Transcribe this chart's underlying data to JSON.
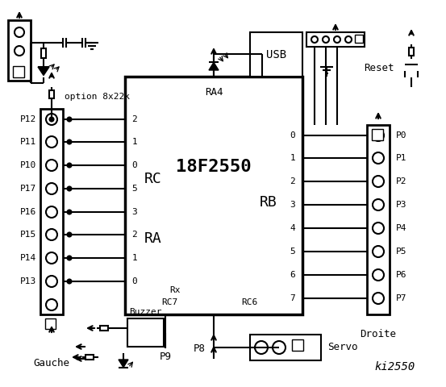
{
  "title": "ki2550",
  "bg_color": "#ffffff",
  "line_color": "#000000",
  "left_pins": [
    "P12",
    "P11",
    "P10",
    "P17",
    "P16",
    "P15",
    "P14",
    "P13"
  ],
  "left_rc_nums": [
    "2",
    "1",
    "0",
    "5",
    "3",
    "2",
    "1",
    "0"
  ],
  "right_pins": [
    "P0",
    "P1",
    "P2",
    "P3",
    "P4",
    "P5",
    "P6",
    "P7"
  ],
  "right_rb_nums": [
    "0",
    "1",
    "2",
    "3",
    "4",
    "5",
    "6",
    "7"
  ],
  "chip_label": "18F2550",
  "chip_ra4": "RA4",
  "chip_rc": "RC",
  "chip_ra": "RA",
  "chip_rb": "RB",
  "chip_rx": "Rx",
  "chip_rc7": "RC7",
  "chip_rc6": "RC6",
  "option_text": "option 8x22k",
  "gauche_text": "Gauche",
  "droite_text": "Droite",
  "servo_text": "Servo",
  "buzzer_text": "Buzzer",
  "usb_text": "USB",
  "reset_text": "Reset",
  "p8_text": "P8",
  "p9_text": "P9"
}
